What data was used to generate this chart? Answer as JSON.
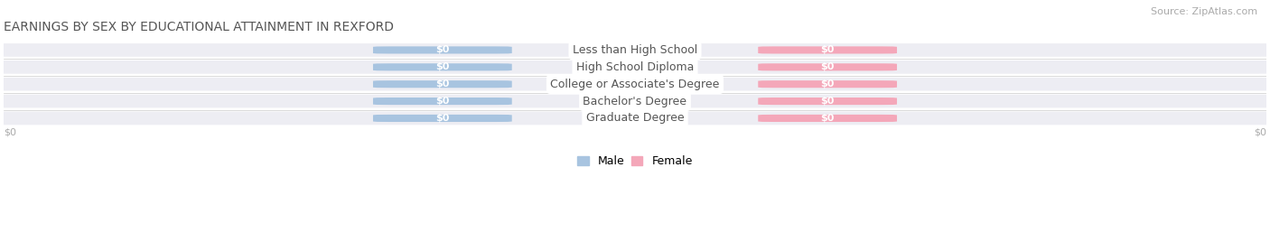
{
  "title": "EARNINGS BY SEX BY EDUCATIONAL ATTAINMENT IN REXFORD",
  "source": "Source: ZipAtlas.com",
  "categories": [
    "Less than High School",
    "High School Diploma",
    "College or Associate's Degree",
    "Bachelor's Degree",
    "Graduate Degree"
  ],
  "male_values": [
    0,
    0,
    0,
    0,
    0
  ],
  "female_values": [
    0,
    0,
    0,
    0,
    0
  ],
  "male_color": "#a8c4e0",
  "female_color": "#f4a7b9",
  "row_bg_color": "#ededf3",
  "bg_color": "#ffffff",
  "title_color": "#555555",
  "label_text_color": "#555555",
  "axis_label_color": "#aaaaaa",
  "xlabel_left": "$0",
  "xlabel_right": "$0",
  "legend_male": "Male",
  "legend_female": "Female",
  "title_fontsize": 10,
  "source_fontsize": 8,
  "category_fontsize": 9,
  "value_fontsize": 8
}
